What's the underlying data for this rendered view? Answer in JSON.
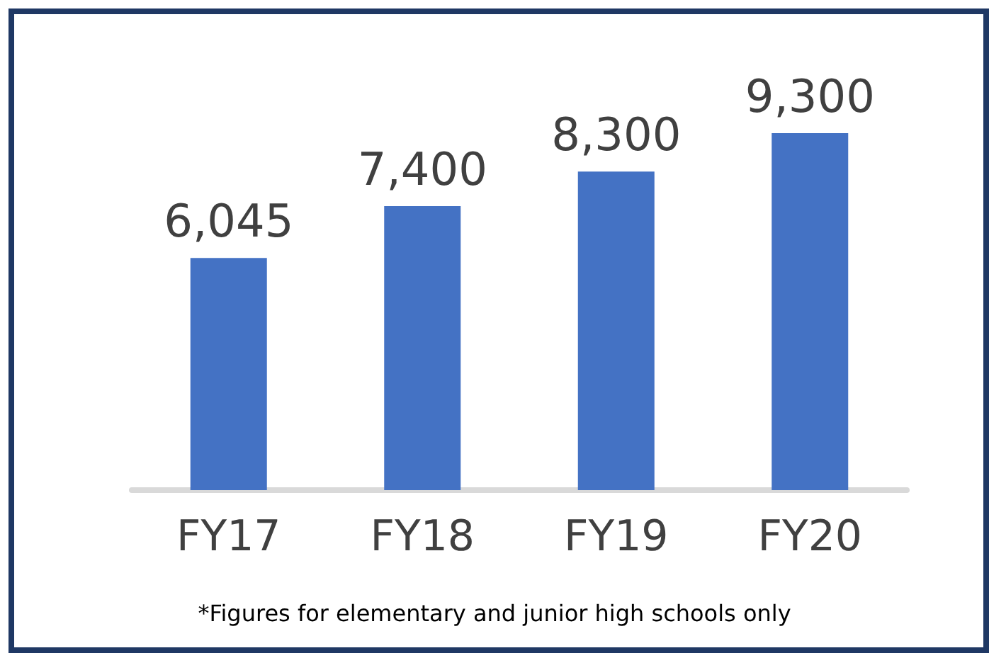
{
  "chart_data": {
    "type": "bar",
    "categories": [
      "FY17",
      "FY18",
      "FY19",
      "FY20"
    ],
    "values": [
      6045,
      7400,
      8300,
      9300
    ],
    "color": "#4472c4",
    "value_labels": [
      "6,045",
      "7,400",
      "8,300",
      "9,300"
    ],
    "annotations": [
      "*Figures for elementary and junior high schools only"
    ]
  }
}
